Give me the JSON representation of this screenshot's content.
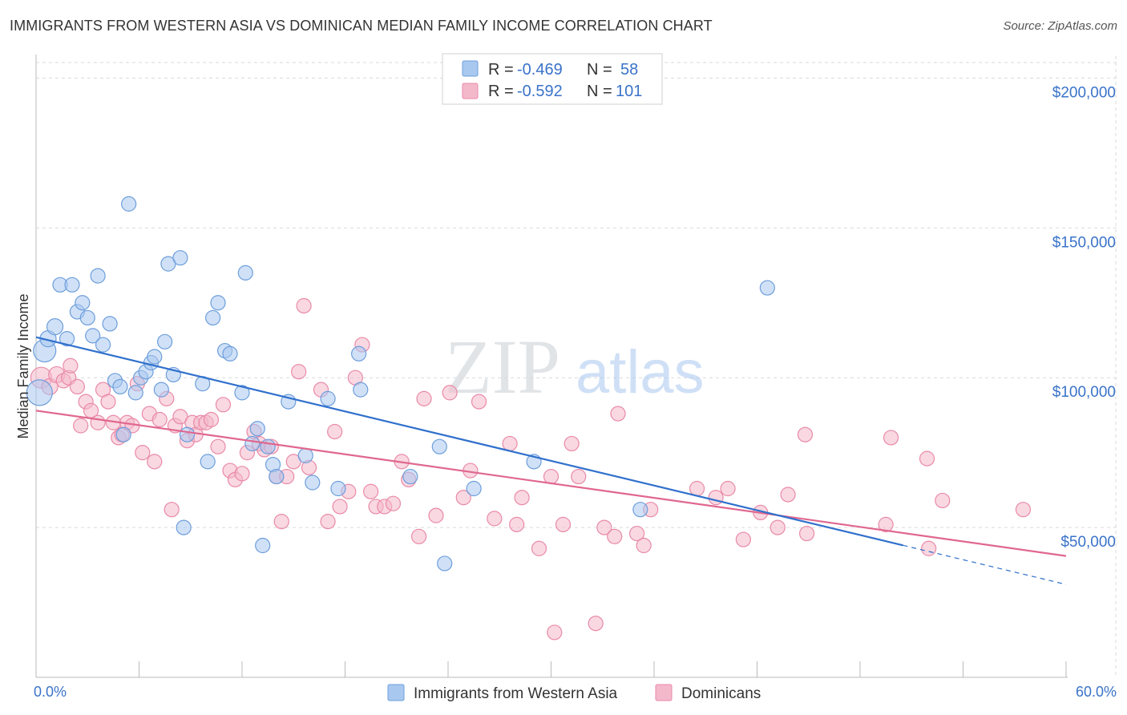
{
  "title": "IMMIGRANTS FROM WESTERN ASIA VS DOMINICAN MEDIAN FAMILY INCOME CORRELATION CHART",
  "source": "Source: ZipAtlas.com",
  "watermark": {
    "zip": "ZIP",
    "atlas": "atlas"
  },
  "colors": {
    "blue_fill": "#a9c8f0",
    "blue_stroke": "#6d9edb",
    "blue_line": "#3070cc",
    "pink_fill": "#f4b8cb",
    "pink_stroke": "#e98aa8",
    "pink_line": "#e0678f",
    "accent_text": "#3a73c9",
    "grid": "#d9d9d9"
  },
  "legend": {
    "rows": [
      {
        "r_label": "R =",
        "r_value": "-0.469",
        "n_label": "N =",
        "n_value": "58",
        "color": "blue"
      },
      {
        "r_label": "R =",
        "r_value": "-0.592",
        "n_label": "N =",
        "n_value": "101",
        "color": "pink"
      }
    ]
  },
  "bottom_legend": [
    {
      "label": "Immigrants from Western Asia",
      "color": "blue"
    },
    {
      "label": "Dominicans",
      "color": "pink"
    }
  ],
  "chart_data": {
    "type": "scatter",
    "title": "IMMIGRANTS FROM WESTERN ASIA VS DOMINICAN MEDIAN FAMILY INCOME CORRELATION CHART",
    "xlabel": "",
    "ylabel": "Median Family Income",
    "xlim": [
      0,
      60
    ],
    "ylim": [
      0,
      210000
    ],
    "x_tick_labels": [
      "0.0%",
      "60.0%"
    ],
    "y_ticks": [
      50000,
      100000,
      150000,
      200000
    ],
    "y_tick_labels": [
      "$50,000",
      "$100,000",
      "$150,000",
      "$200,000"
    ],
    "grid": true,
    "legend_position": "top-center",
    "series": [
      {
        "name": "Immigrants from Western Asia",
        "color": "blue",
        "r": -0.469,
        "n": 58,
        "trend": {
          "x0": 0,
          "y0": 113500,
          "x1": 60,
          "y1": 31000,
          "solid_until_x": 50.5
        },
        "points": [
          [
            0.2,
            95000,
            16
          ],
          [
            0.5,
            109000,
            14
          ],
          [
            0.7,
            113000,
            10
          ],
          [
            1.1,
            117000,
            10
          ],
          [
            1.8,
            113000,
            9
          ],
          [
            1.4,
            131000,
            9
          ],
          [
            2.1,
            131000,
            9
          ],
          [
            2.4,
            122000,
            9
          ],
          [
            2.7,
            125000,
            9
          ],
          [
            3.0,
            120000,
            9
          ],
          [
            3.3,
            114000,
            9
          ],
          [
            3.6,
            134000,
            9
          ],
          [
            3.9,
            111000,
            9
          ],
          [
            4.3,
            118000,
            9
          ],
          [
            4.6,
            99000,
            9
          ],
          [
            4.9,
            97000,
            9
          ],
          [
            5.1,
            81000,
            9
          ],
          [
            5.4,
            158000,
            9
          ],
          [
            5.8,
            95000,
            9
          ],
          [
            6.1,
            100000,
            9
          ],
          [
            6.4,
            102000,
            9
          ],
          [
            6.7,
            105000,
            9
          ],
          [
            6.9,
            107000,
            9
          ],
          [
            7.3,
            96000,
            9
          ],
          [
            7.5,
            112000,
            9
          ],
          [
            7.7,
            138000,
            9
          ],
          [
            8.0,
            101000,
            9
          ],
          [
            8.4,
            140000,
            9
          ],
          [
            8.6,
            50000,
            9
          ],
          [
            8.8,
            81000,
            9
          ],
          [
            9.7,
            98000,
            9
          ],
          [
            10.0,
            72000,
            9
          ],
          [
            10.3,
            120000,
            9
          ],
          [
            10.6,
            125000,
            9
          ],
          [
            11.0,
            109000,
            9
          ],
          [
            11.3,
            108000,
            9
          ],
          [
            12.0,
            95000,
            9
          ],
          [
            12.2,
            135000,
            9
          ],
          [
            12.6,
            78000,
            9
          ],
          [
            12.9,
            83000,
            9
          ],
          [
            13.2,
            44000,
            9
          ],
          [
            13.5,
            77000,
            9
          ],
          [
            13.8,
            71000,
            9
          ],
          [
            14.0,
            67000,
            9
          ],
          [
            14.7,
            92000,
            9
          ],
          [
            15.7,
            74000,
            9
          ],
          [
            16.1,
            65000,
            9
          ],
          [
            17.0,
            93000,
            9
          ],
          [
            17.6,
            63000,
            9
          ],
          [
            18.8,
            108000,
            9
          ],
          [
            18.9,
            96000,
            9
          ],
          [
            21.8,
            67000,
            9
          ],
          [
            23.5,
            77000,
            9
          ],
          [
            23.8,
            38000,
            9
          ],
          [
            25.5,
            63000,
            9
          ],
          [
            29.0,
            72000,
            9
          ],
          [
            35.2,
            56000,
            9
          ],
          [
            42.6,
            130000,
            9
          ]
        ]
      },
      {
        "name": "Dominicans",
        "color": "pink",
        "r": -0.592,
        "n": 101,
        "trend": {
          "x0": 0,
          "y0": 89000,
          "x1": 60,
          "y1": 40500,
          "solid_until_x": 60
        },
        "points": [
          [
            0.3,
            100000,
            13
          ],
          [
            0.8,
            97000,
            10
          ],
          [
            1.2,
            101000,
            10
          ],
          [
            1.6,
            99000,
            9
          ],
          [
            1.9,
            100000,
            9
          ],
          [
            2.0,
            104000,
            9
          ],
          [
            2.4,
            97000,
            9
          ],
          [
            2.6,
            84000,
            9
          ],
          [
            2.9,
            92000,
            9
          ],
          [
            3.2,
            89000,
            9
          ],
          [
            3.6,
            85000,
            9
          ],
          [
            3.9,
            96000,
            9
          ],
          [
            4.2,
            92000,
            9
          ],
          [
            4.5,
            85000,
            9
          ],
          [
            4.8,
            80000,
            9
          ],
          [
            5.0,
            81000,
            9
          ],
          [
            5.3,
            85000,
            9
          ],
          [
            5.6,
            84000,
            9
          ],
          [
            5.9,
            98000,
            9
          ],
          [
            6.2,
            75000,
            9
          ],
          [
            6.6,
            88000,
            9
          ],
          [
            6.9,
            72000,
            9
          ],
          [
            7.2,
            86000,
            9
          ],
          [
            7.6,
            93000,
            9
          ],
          [
            7.9,
            56000,
            9
          ],
          [
            8.1,
            84000,
            9
          ],
          [
            8.4,
            87000,
            9
          ],
          [
            8.8,
            79000,
            9
          ],
          [
            9.1,
            85000,
            9
          ],
          [
            9.3,
            81000,
            9
          ],
          [
            9.6,
            85000,
            9
          ],
          [
            9.9,
            85000,
            9
          ],
          [
            10.2,
            86000,
            9
          ],
          [
            10.6,
            77000,
            9
          ],
          [
            10.9,
            91000,
            9
          ],
          [
            11.3,
            69000,
            9
          ],
          [
            11.6,
            66000,
            9
          ],
          [
            12.0,
            68000,
            9
          ],
          [
            12.3,
            75000,
            9
          ],
          [
            12.7,
            82000,
            9
          ],
          [
            13.0,
            78000,
            9
          ],
          [
            13.3,
            76000,
            9
          ],
          [
            13.7,
            77000,
            9
          ],
          [
            14.0,
            67000,
            9
          ],
          [
            14.3,
            52000,
            9
          ],
          [
            14.6,
            67000,
            9
          ],
          [
            15.0,
            72000,
            9
          ],
          [
            15.3,
            102000,
            9
          ],
          [
            15.6,
            124000,
            9
          ],
          [
            15.9,
            70000,
            9
          ],
          [
            16.6,
            96000,
            9
          ],
          [
            17.0,
            52000,
            9
          ],
          [
            17.4,
            82000,
            9
          ],
          [
            17.7,
            57000,
            9
          ],
          [
            18.2,
            62000,
            9
          ],
          [
            18.6,
            100000,
            9
          ],
          [
            19.0,
            111000,
            9
          ],
          [
            19.5,
            62000,
            9
          ],
          [
            19.8,
            57000,
            9
          ],
          [
            20.3,
            57000,
            9
          ],
          [
            20.8,
            58000,
            9
          ],
          [
            21.3,
            72000,
            9
          ],
          [
            21.7,
            66000,
            9
          ],
          [
            22.3,
            47000,
            9
          ],
          [
            22.6,
            93000,
            9
          ],
          [
            23.3,
            54000,
            9
          ],
          [
            24.1,
            95000,
            9
          ],
          [
            24.9,
            60000,
            9
          ],
          [
            25.3,
            69000,
            9
          ],
          [
            25.8,
            92000,
            9
          ],
          [
            26.7,
            53000,
            9
          ],
          [
            27.6,
            78000,
            9
          ],
          [
            28.0,
            51000,
            9
          ],
          [
            28.3,
            60000,
            9
          ],
          [
            29.3,
            43000,
            9
          ],
          [
            30.0,
            67000,
            9
          ],
          [
            30.7,
            51000,
            9
          ],
          [
            31.2,
            78000,
            9
          ],
          [
            31.6,
            67000,
            9
          ],
          [
            32.6,
            18000,
            9
          ],
          [
            33.1,
            50000,
            9
          ],
          [
            33.7,
            47000,
            9
          ],
          [
            33.9,
            88000,
            9
          ],
          [
            35.0,
            48000,
            9
          ],
          [
            35.4,
            44000,
            9
          ],
          [
            35.8,
            56000,
            9
          ],
          [
            30.2,
            15000,
            9
          ],
          [
            38.5,
            63000,
            9
          ],
          [
            39.6,
            60000,
            9
          ],
          [
            40.3,
            63000,
            9
          ],
          [
            41.2,
            46000,
            9
          ],
          [
            42.2,
            55000,
            9
          ],
          [
            43.2,
            50000,
            9
          ],
          [
            43.8,
            61000,
            9
          ],
          [
            44.8,
            81000,
            9
          ],
          [
            44.9,
            48000,
            9
          ],
          [
            49.5,
            51000,
            9
          ],
          [
            49.8,
            80000,
            9
          ],
          [
            51.9,
            73000,
            9
          ],
          [
            52.0,
            43000,
            9
          ],
          [
            52.8,
            59000,
            9
          ],
          [
            57.5,
            56000,
            9
          ]
        ]
      }
    ]
  }
}
